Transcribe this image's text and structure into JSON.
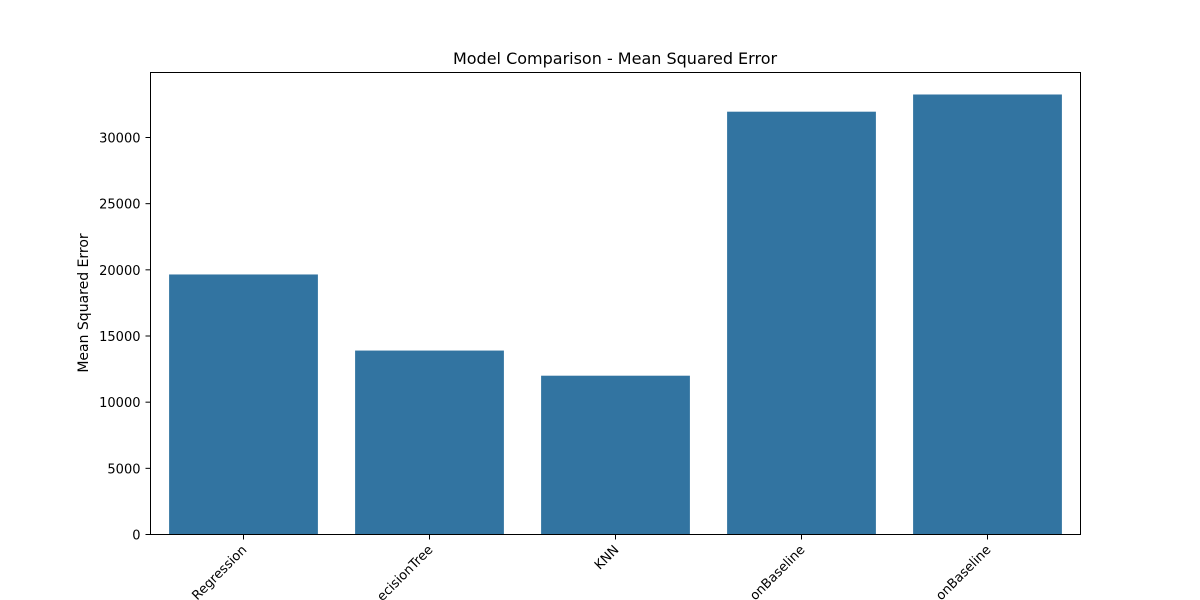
{
  "chart_data": {
    "type": "bar",
    "title": "Model Comparison - Mean Squared Error",
    "xlabel": "",
    "ylabel": "Mean Squared Error",
    "categories": [
      "Regression",
      "ecisionTree",
      "KNN",
      "onBaseline",
      "onBaseline"
    ],
    "values": [
      19650,
      13900,
      12000,
      31950,
      33250
    ],
    "yticks": [
      0,
      5000,
      10000,
      15000,
      20000,
      25000,
      30000
    ],
    "ylim": [
      0,
      34912
    ],
    "bar_color": "#3274a1",
    "grid": false,
    "legend": "none",
    "xtick_rotation": 45
  }
}
